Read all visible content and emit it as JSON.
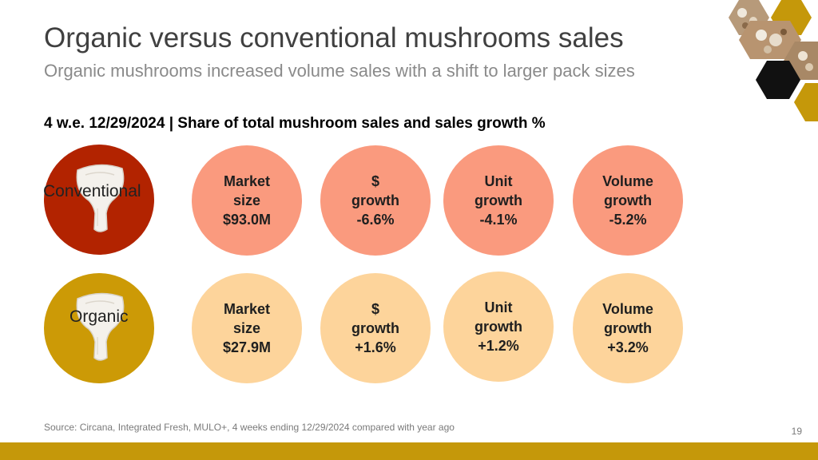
{
  "slide": {
    "title": "Organic versus conventional mushrooms sales",
    "subtitle": "Organic mushrooms increased volume sales with a shift to larger pack sizes",
    "heading": "4 w.e. 12/29/2024 | Share of total mushroom sales and sales growth %",
    "source": "Source: Circana, Integrated Fresh, MULO+, 4 weeks ending 12/29/2024 compared with year ago",
    "page_number": "19"
  },
  "rows": [
    {
      "label": "Conventional",
      "color": "#b22300",
      "stat_color": "#fa9a7e",
      "stats": [
        [
          "Market",
          "size",
          "$93.0M"
        ],
        [
          "$",
          "growth",
          "-6.6%"
        ],
        [
          "Unit",
          "growth",
          "-4.1%"
        ],
        [
          "Volume",
          "growth",
          "-5.2%"
        ]
      ]
    },
    {
      "label": "Organic",
      "color": "#cc9a06",
      "stat_color": "#fdd49b",
      "stats": [
        [
          "Market",
          "size",
          "$27.9M"
        ],
        [
          "$",
          "growth",
          "+1.6%"
        ],
        [
          "Unit",
          "growth",
          "+1.2%"
        ],
        [
          "Volume",
          "growth",
          "+3.2%"
        ]
      ]
    }
  ],
  "icons": [
    "mushroom-icon",
    "hexagon-photo-icon"
  ],
  "colors": {
    "footer_bar": "#c5980a",
    "hex_dark": "#111111",
    "hex_gold": "#c5980a"
  }
}
